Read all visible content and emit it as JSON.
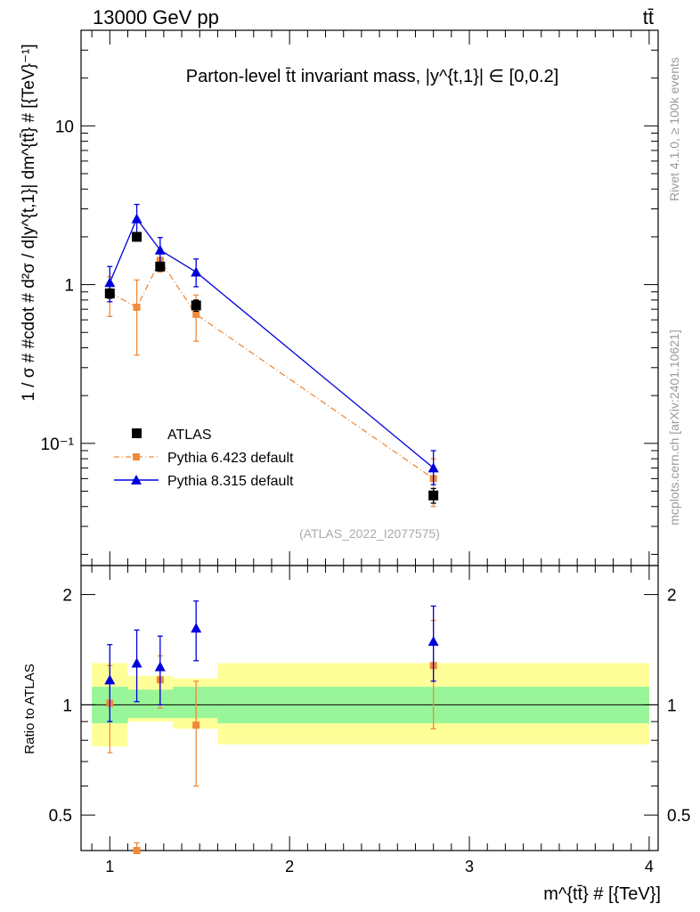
{
  "header": {
    "energy": "13000 GeV pp",
    "process": "tt̄"
  },
  "side_labels": {
    "rivet": "Rivet 4.1.0, ≥ 100k events",
    "mcplots": "mcplots.cern.ch [arXiv:2401.10621]"
  },
  "chart_data": [
    {
      "type": "line",
      "panel": "main",
      "title": "Parton-level t̄t invariant mass, |y^{t,1}| ∈ [0,0.2]",
      "analysis_label": "(ATLAS_2022_I2077575)",
      "ylabel": "1 / σ # #cdot # d²σ / d|y^{t,1}| dm^{tt̄} # [{TeV}⁻¹]",
      "xlabel": "",
      "yscale": "log",
      "xlim": [
        0.84,
        4.05
      ],
      "ylim": [
        0.017,
        40
      ],
      "y_ticks": [
        {
          "value": 10,
          "label": "10"
        },
        {
          "value": 1,
          "label": "1"
        },
        {
          "value": 0.1,
          "label": "10⁻¹"
        }
      ],
      "x_ticks": [
        1,
        2,
        3,
        4
      ],
      "legend": {
        "placement": "lower-left"
      },
      "series": [
        {
          "name": "ATLAS",
          "color": "#000000",
          "marker": "square",
          "x": [
            1.0,
            1.15,
            1.28,
            1.48,
            2.8
          ],
          "y": [
            0.88,
            2.0,
            1.3,
            0.74,
            0.047
          ],
          "yerr": [
            0.06,
            0.12,
            0.08,
            0.06,
            0.005
          ]
        },
        {
          "name": "Pythia 6.423 default",
          "color": "#f08a3a",
          "marker": "square",
          "linestyle": "dashdot",
          "x": [
            1.0,
            1.15,
            1.28,
            1.48,
            2.8
          ],
          "y": [
            0.89,
            0.72,
            1.42,
            0.65,
            0.06
          ],
          "ylo": [
            0.63,
            0.36,
            1.2,
            0.44,
            0.04
          ],
          "yhi": [
            1.12,
            1.07,
            1.64,
            0.86,
            0.08
          ]
        },
        {
          "name": "Pythia 8.315 default",
          "color": "#0000dd",
          "marker": "triangle",
          "linestyle": "solid",
          "x": [
            1.0,
            1.15,
            1.28,
            1.48,
            2.8
          ],
          "y": [
            1.03,
            2.6,
            1.65,
            1.2,
            0.07
          ],
          "ylo": [
            0.78,
            2.05,
            1.35,
            0.97,
            0.055
          ],
          "yhi": [
            1.3,
            3.2,
            1.98,
            1.45,
            0.09
          ]
        }
      ]
    },
    {
      "type": "line",
      "panel": "ratio",
      "ylabel": "Ratio to ATLAS",
      "xlabel": "m^{tt̄} # [{TeV}]",
      "yscale": "log",
      "xlim": [
        0.84,
        4.05
      ],
      "ylim": [
        0.4,
        2.4
      ],
      "y_ticks": [
        {
          "value": 2,
          "label": "2"
        },
        {
          "value": 1,
          "label": "1"
        },
        {
          "value": 0.5,
          "label": "0.5"
        }
      ],
      "x_ticks": [
        1,
        2,
        3,
        4
      ],
      "bands": {
        "bins": [
          [
            0.9,
            1.1
          ],
          [
            1.1,
            1.25
          ],
          [
            1.25,
            1.35
          ],
          [
            1.35,
            1.6
          ],
          [
            1.6,
            4.0
          ]
        ],
        "inner_lo": [
          0.89,
          0.92,
          0.92,
          0.92,
          0.89
        ],
        "inner_hi": [
          1.12,
          1.1,
          1.1,
          1.12,
          1.12
        ],
        "outer_lo": [
          0.77,
          0.9,
          0.9,
          0.86,
          0.78
        ],
        "outer_hi": [
          1.3,
          1.2,
          1.2,
          1.18,
          1.3
        ],
        "inner_color": "#99f599",
        "outer_color": "#ffff99"
      },
      "series": [
        {
          "name": "Pythia 6.423 default",
          "color": "#f08a3a",
          "x": [
            1.0,
            1.15,
            1.28,
            1.48,
            2.8
          ],
          "y": [
            1.01,
            0.36,
            1.17,
            0.88,
            1.28
          ],
          "ylo": [
            0.74,
            0.3,
            0.98,
            0.6,
            0.86
          ],
          "yhi": [
            1.28,
            0.42,
            1.36,
            1.16,
            1.7
          ]
        },
        {
          "name": "Pythia 8.315 default",
          "color": "#0000dd",
          "x": [
            1.0,
            1.15,
            1.28,
            1.48,
            2.8
          ],
          "y": [
            1.17,
            1.3,
            1.27,
            1.62,
            1.49
          ],
          "ylo": [
            0.9,
            1.02,
            1.0,
            1.32,
            1.16
          ],
          "yhi": [
            1.46,
            1.6,
            1.54,
            1.92,
            1.86
          ]
        }
      ]
    }
  ]
}
